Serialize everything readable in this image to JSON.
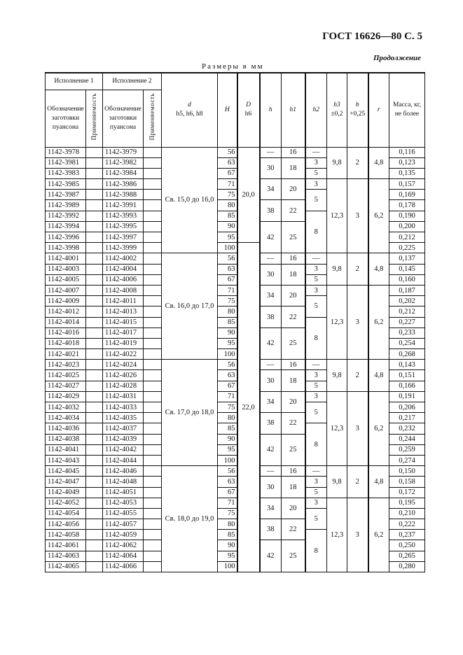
{
  "header": {
    "standard": "ГОСТ 16626—80 С. 5",
    "continuation": "Продолжение",
    "units": "Размеры в мм"
  },
  "columns": {
    "ispolnenie1": "Исполнение 1",
    "ispolnenie2": "Исполнение 2",
    "designation": "Обозначение заготовки пуансона",
    "applicability": "Применяемость",
    "d": "d",
    "d_tol": "h5, h6, h8",
    "H": "H",
    "D": "D",
    "D_tol": "h6",
    "h": "h",
    "h1": "h1",
    "h2": "h2",
    "h3": "h3",
    "h3_tol": "±0,2",
    "b": "b",
    "b_tol": "+0,25",
    "r": "r",
    "mass": "Масса, кг, не более"
  },
  "D_values": [
    "20,0",
    "22,0"
  ],
  "blocks": [
    {
      "d": "Св. 15,0 до 16,0",
      "rows": [
        {
          "ex1": "1142-3978",
          "ex2": "1142-3979",
          "H": "56",
          "mass": "0,116"
        },
        {
          "ex1": "1142-3981",
          "ex2": "1142-3982",
          "H": "63",
          "mass": "0,123"
        },
        {
          "ex1": "1142-3983",
          "ex2": "1142-3984",
          "H": "67",
          "mass": "0,135"
        },
        {
          "ex1": "1142-3985",
          "ex2": "1142-3986",
          "H": "71",
          "mass": "0,157"
        },
        {
          "ex1": "1142-3987",
          "ex2": "1142-3988",
          "H": "75",
          "mass": "0,169"
        },
        {
          "ex1": "1142-3989",
          "ex2": "1142-3991",
          "H": "80",
          "mass": "0,178"
        },
        {
          "ex1": "1142-3992",
          "ex2": "1142-3993",
          "H": "85",
          "mass": "0,190"
        },
        {
          "ex1": "1142-3994",
          "ex2": "1142-3995",
          "H": "90",
          "mass": "0,200"
        },
        {
          "ex1": "1142-3996",
          "ex2": "1142-3997",
          "H": "95",
          "mass": "0,212"
        },
        {
          "ex1": "1142-3998",
          "ex2": "1142-3999",
          "H": "100",
          "mass": "0,225"
        }
      ]
    },
    {
      "d": "Св. 16,0 до 17,0",
      "rows": [
        {
          "ex1": "1142-4001",
          "ex2": "1142-4002",
          "H": "56",
          "mass": "0,137"
        },
        {
          "ex1": "1142-4003",
          "ex2": "1142-4004",
          "H": "63",
          "mass": "0,145"
        },
        {
          "ex1": "1142-4005",
          "ex2": "1142-4006",
          "H": "67",
          "mass": "0,160"
        },
        {
          "ex1": "1142-4007",
          "ex2": "1142-4008",
          "H": "71",
          "mass": "0,187"
        },
        {
          "ex1": "1142-4009",
          "ex2": "1142-4011",
          "H": "75",
          "mass": "0,202"
        },
        {
          "ex1": "1142-4012",
          "ex2": "1142-4013",
          "H": "80",
          "mass": "0,212"
        },
        {
          "ex1": "1142-4014",
          "ex2": "1142-4015",
          "H": "85",
          "mass": "0,227"
        },
        {
          "ex1": "1142-4016",
          "ex2": "1142-4017",
          "H": "90",
          "mass": "0,233"
        },
        {
          "ex1": "1142-4018",
          "ex2": "1142-4019",
          "H": "95",
          "mass": "0,254"
        },
        {
          "ex1": "1142-4021",
          "ex2": "1142-4022",
          "H": "100",
          "mass": "0,268"
        }
      ]
    },
    {
      "d": "Св. 17,0 до 18,0",
      "rows": [
        {
          "ex1": "1142-4023",
          "ex2": "1142-4024",
          "H": "56",
          "mass": "0,143"
        },
        {
          "ex1": "1142-4025",
          "ex2": "1142-4026",
          "H": "63",
          "mass": "0,151"
        },
        {
          "ex1": "1142-4027",
          "ex2": "1142-4028",
          "H": "67",
          "mass": "0,166"
        },
        {
          "ex1": "1142-4029",
          "ex2": "1142-4031",
          "H": "71",
          "mass": "0,191"
        },
        {
          "ex1": "1142-4032",
          "ex2": "1142-4033",
          "H": "75",
          "mass": "0,206"
        },
        {
          "ex1": "1142-4034",
          "ex2": "1142-4035",
          "H": "80",
          "mass": "0,217"
        },
        {
          "ex1": "1142-4036",
          "ex2": "1142-4037",
          "H": "85",
          "mass": "0,232"
        },
        {
          "ex1": "1142-4038",
          "ex2": "1142-4039",
          "H": "90",
          "mass": "0,244"
        },
        {
          "ex1": "1142-4041",
          "ex2": "1142-4042",
          "H": "95",
          "mass": "0,259"
        },
        {
          "ex1": "1142-4043",
          "ex2": "1142-4044",
          "H": "100",
          "mass": "0,274"
        }
      ]
    },
    {
      "d": "Св. 18,0 до 19,0",
      "rows": [
        {
          "ex1": "1142-4045",
          "ex2": "1142-4046",
          "H": "56",
          "mass": "0,150"
        },
        {
          "ex1": "1142-4047",
          "ex2": "1142-4048",
          "H": "63",
          "mass": "0,158"
        },
        {
          "ex1": "1142-4049",
          "ex2": "1142-4051",
          "H": "67",
          "mass": "0,172"
        },
        {
          "ex1": "1142-4052",
          "ex2": "1142-4053",
          "H": "71",
          "mass": "0,195"
        },
        {
          "ex1": "1142-4054",
          "ex2": "1142-4055",
          "H": "75",
          "mass": "0,210"
        },
        {
          "ex1": "1142-4056",
          "ex2": "1142-4057",
          "H": "80",
          "mass": "0,222"
        },
        {
          "ex1": "1142-4058",
          "ex2": "1142-4059",
          "H": "85",
          "mass": "0,237"
        },
        {
          "ex1": "1142-4061",
          "ex2": "1142-4062",
          "H": "90",
          "mass": "0,250"
        },
        {
          "ex1": "1142-4063",
          "ex2": "1142-4064",
          "H": "95",
          "mass": "0,265"
        },
        {
          "ex1": "1142-4065",
          "ex2": "1142-4066",
          "H": "100",
          "mass": "0,280"
        }
      ]
    }
  ],
  "pattern": {
    "h_h1": [
      [
        "—",
        "16"
      ],
      [
        "30",
        "18"
      ],
      [
        "34",
        "20"
      ],
      [
        "38",
        "22"
      ],
      [
        "42",
        "25"
      ]
    ],
    "h2": [
      "—",
      "3",
      "5",
      "3",
      "5",
      "8"
    ],
    "h3_b_r": [
      [
        "9,8",
        "2",
        "4,8"
      ],
      [
        "12,3",
        "3",
        "6,2"
      ]
    ]
  }
}
